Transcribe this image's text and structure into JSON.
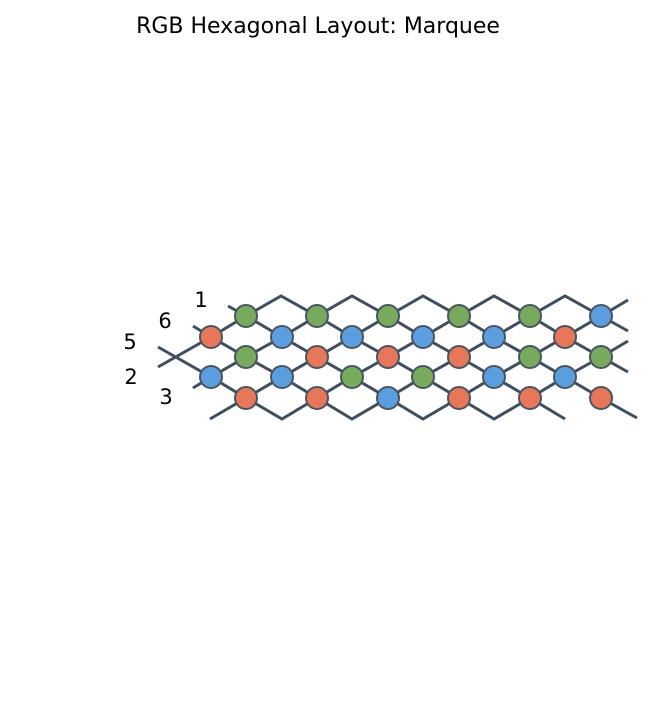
{
  "title": "RGB Hexagonal Layout: Marquee",
  "colors": {
    "background": "#ffffff",
    "strand": "#3f4f5f",
    "node_outline": "#4a5560",
    "R": "#e8775a",
    "G": "#78aa5e",
    "B": "#5b9ee0"
  },
  "row_labels": [
    "1",
    "6",
    "5",
    "2",
    "3"
  ],
  "node_colors": {
    "row_y296": [
      "G",
      "G",
      "G",
      "G",
      "G",
      "B"
    ],
    "row_y337": [
      "R",
      "B",
      "B",
      "B",
      "B",
      "R"
    ],
    "row_y357": [
      "G",
      "R",
      "R",
      "R",
      "G",
      "G"
    ],
    "row_y377": [
      "B",
      "B",
      "G",
      "G",
      "B",
      "B"
    ],
    "row_y398": [
      "R",
      "R",
      "B",
      "R",
      "R",
      "R"
    ]
  }
}
